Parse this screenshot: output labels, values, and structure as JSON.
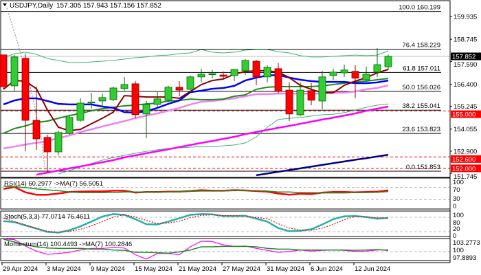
{
  "header": {
    "menu_icon": "triangle-down-icon",
    "symbol": "USDJPY,Daily",
    "ohlc": "157.305 157.943 157.156 157.852"
  },
  "colors": {
    "bull": "#32cd32",
    "bear": "#ff0000",
    "ma_fast": "#8b0000",
    "ma_blue": "#0000ff",
    "ma_green": "#228b22",
    "ma_violet": "#ee82ee",
    "ma_magenta": "#ff00ff",
    "ma_navy": "#000080",
    "band": "#3cb371",
    "support": "#ff0000",
    "fib": "#000000",
    "current": "#c0c0c0"
  },
  "price_axis": {
    "ticks": [
      "159.935",
      "158.745",
      "157.590",
      "156.400",
      "155.245",
      "154.055",
      "152.900",
      "151.745"
    ],
    "current_price": "157.852",
    "support_levels": [
      "155.000",
      "152.600",
      "152.000"
    ]
  },
  "fib_levels": [
    {
      "label": "100.0 160.199",
      "price": 160.199
    },
    {
      "label": "76.4 158.229",
      "price": 158.229
    },
    {
      "label": "61.8 157.011",
      "price": 157.011
    },
    {
      "label": "50.0 156.026",
      "price": 156.026
    },
    {
      "label": "38.2 155.041",
      "price": 155.041
    },
    {
      "label": "23.6 153.823",
      "price": 153.823
    },
    {
      "label": "0.0 151.853",
      "price": 151.853
    }
  ],
  "dates": [
    "29 Apr 2024",
    "3 May 2024",
    "9 May 2024",
    "15 May 2024",
    "21 May 2024",
    "27 May 2024",
    "31 May 2024",
    "6 Jun 2024",
    "12 Jun 2024"
  ],
  "chart_data": [
    {
      "type": "candlestick",
      "title": "USDJPY,Daily",
      "ylim": [
        151.745,
        160.199
      ],
      "ohlc": [
        [
          157.93,
          157.93,
          156.13,
          156.27
        ],
        [
          156.31,
          157.93,
          156.02,
          157.82
        ],
        [
          157.75,
          158.0,
          152.9,
          154.51
        ],
        [
          154.51,
          156.27,
          152.97,
          153.54
        ],
        [
          153.62,
          153.76,
          151.82,
          152.86
        ],
        [
          152.86,
          153.98,
          152.68,
          153.87
        ],
        [
          153.83,
          154.77,
          153.76,
          154.66
        ],
        [
          154.51,
          155.66,
          154.44,
          155.41
        ],
        [
          155.43,
          155.95,
          155.12,
          155.47
        ],
        [
          155.52,
          155.91,
          155.2,
          155.7
        ],
        [
          155.59,
          156.27,
          155.52,
          156.2
        ],
        [
          156.17,
          156.78,
          156.06,
          156.38
        ],
        [
          156.42,
          156.56,
          154.62,
          154.8
        ],
        [
          154.84,
          155.52,
          153.58,
          155.34
        ],
        [
          155.34,
          155.99,
          155.2,
          155.63
        ],
        [
          155.56,
          156.31,
          155.48,
          156.24
        ],
        [
          156.24,
          156.56,
          155.77,
          156.09
        ],
        [
          156.13,
          156.85,
          156.09,
          156.78
        ],
        [
          156.78,
          157.21,
          156.49,
          156.92
        ],
        [
          156.9,
          157.14,
          156.7,
          156.95
        ],
        [
          156.88,
          157.06,
          156.67,
          156.81
        ],
        [
          156.85,
          157.17,
          156.56,
          157.17
        ],
        [
          157.1,
          157.71,
          156.88,
          157.64
        ],
        [
          157.6,
          157.67,
          156.35,
          156.78
        ],
        [
          156.78,
          157.39,
          156.49,
          157.28
        ],
        [
          157.21,
          157.5,
          155.91,
          156.02
        ],
        [
          156.09,
          156.49,
          154.48,
          154.84
        ],
        [
          154.8,
          156.49,
          154.73,
          156.09
        ],
        [
          156.06,
          156.45,
          155.3,
          155.56
        ],
        [
          155.52,
          157.1,
          155.09,
          156.78
        ],
        [
          156.85,
          157.21,
          156.63,
          157.03
        ],
        [
          156.99,
          157.42,
          156.78,
          157.14
        ],
        [
          157.07,
          157.39,
          155.66,
          156.71
        ],
        [
          156.63,
          157.32,
          156.59,
          156.92
        ],
        [
          157.03,
          158.28,
          156.78,
          157.42
        ],
        [
          157.305,
          157.943,
          157.156,
          157.852
        ]
      ],
      "overlays": {
        "ma_fast": [
          156.13,
          156.59,
          156.56,
          156.16,
          155.05,
          154.15,
          153.97,
          154.04,
          154.33,
          154.62,
          154.94,
          155.8,
          155.77,
          155.73,
          155.73,
          155.73,
          155.66,
          156.02,
          156.38,
          156.59,
          156.67,
          156.92,
          157.06,
          157.1,
          157.1,
          157.03,
          156.74,
          156.34,
          156.13,
          155.95,
          155.95,
          156.34,
          156.56,
          156.74,
          156.99,
          157.17
        ],
        "ma_blue": [
          155.34,
          155.55,
          155.66,
          155.66,
          155.52,
          155.37,
          155.34,
          155.34,
          155.34,
          155.23,
          155.16,
          154.94,
          154.91,
          154.98,
          155.16,
          155.37,
          155.55,
          155.98,
          156.06,
          156.16,
          156.2,
          156.31,
          156.59,
          156.74,
          156.85,
          156.88,
          156.74,
          156.63,
          156.56,
          156.52,
          156.52,
          156.52,
          156.45,
          156.45,
          156.49,
          156.59
        ],
        "ma_green": [
          153.83,
          154.08,
          154.22,
          154.4,
          154.47,
          154.62,
          154.76,
          154.87,
          155.01,
          155.12,
          155.19,
          155.27,
          155.3,
          155.37,
          155.41,
          155.52,
          155.55,
          155.62,
          155.59,
          155.59,
          155.62,
          155.77,
          155.84,
          156.13,
          156.24,
          156.27,
          156.27,
          156.27,
          156.27,
          156.31,
          156.38,
          156.45,
          156.52,
          156.56,
          156.63,
          156.7
        ],
        "ma_violet": [
          153.04,
          153.14,
          153.25,
          153.33,
          153.43,
          153.58,
          153.72,
          153.9,
          154.04,
          154.19,
          154.33,
          154.47,
          154.62,
          154.76,
          154.87,
          155.01,
          155.16,
          155.34,
          155.48,
          155.52,
          155.59,
          155.66,
          155.77,
          155.88,
          155.88,
          155.91,
          155.91,
          155.91,
          155.91,
          155.91,
          155.95,
          155.95,
          156.02,
          156.13,
          156.2,
          156.34
        ],
        "ma_magenta": [
          null,
          null,
          null,
          151.67,
          151.78,
          151.89,
          152.0,
          152.1,
          152.21,
          152.32,
          152.43,
          152.57,
          152.68,
          152.79,
          152.89,
          153.0,
          153.11,
          153.22,
          153.33,
          153.43,
          153.54,
          153.65,
          153.79,
          153.9,
          154.01,
          154.12,
          154.22,
          154.33,
          154.44,
          154.55,
          154.65,
          154.76,
          154.87,
          155.01,
          155.12,
          155.23
        ],
        "ma_navy": [
          null,
          null,
          null,
          null,
          null,
          null,
          null,
          null,
          null,
          null,
          null,
          null,
          null,
          null,
          null,
          null,
          null,
          null,
          null,
          null,
          null,
          null,
          null,
          151.64,
          151.73,
          151.82,
          151.91,
          152.0,
          152.09,
          152.18,
          152.27,
          152.36,
          152.45,
          152.53,
          152.62,
          152.71
        ],
        "band_upper": [
          157.78,
          157.99,
          158.07,
          157.96,
          157.74,
          157.64,
          157.53,
          157.53,
          157.56,
          157.6,
          157.64,
          157.71,
          157.78,
          157.82,
          157.89,
          157.92,
          157.99,
          158.03,
          158.21,
          158.07,
          158.03,
          158.07,
          158.18,
          158.21,
          158.21,
          158.1,
          158.03,
          157.89,
          157.82,
          157.82,
          157.85,
          157.89,
          157.92,
          157.89,
          157.92,
          158.14
        ],
        "band_lower": [
          null,
          null,
          null,
          null,
          null,
          151.71,
          151.89,
          152.07,
          152.25,
          152.43,
          152.57,
          152.68,
          152.79,
          152.89,
          152.97,
          153.04,
          153.07,
          153.11,
          153.14,
          153.14,
          153.18,
          153.22,
          153.33,
          153.65,
          154.15,
          154.55,
          154.62,
          154.65,
          154.73,
          154.8,
          154.83,
          154.91,
          155.05,
          155.19,
          155.3,
          155.37
        ]
      }
    },
    {
      "type": "line",
      "title": "RSI(14) 60.2977  ->MA(7) 56.5051",
      "ylim": [
        0,
        100
      ],
      "ticks": [
        "100",
        "70",
        "30",
        "0"
      ],
      "levels": [
        70,
        30
      ],
      "series": [
        {
          "name": "RSI(14)",
          "values": [
            65,
            71,
            54,
            46,
            46,
            50,
            55,
            56,
            57,
            57,
            59,
            59,
            53,
            55,
            55,
            56,
            56,
            58,
            61,
            59,
            59,
            61,
            60,
            58,
            56,
            50,
            46,
            49,
            48,
            53,
            55,
            55,
            54,
            55,
            56,
            60.3
          ]
        },
        {
          "name": "MA(7)",
          "values": [
            74,
            72,
            69,
            65,
            62,
            59,
            55,
            53,
            53,
            53,
            53,
            55,
            55,
            55,
            55,
            55,
            56,
            57,
            58,
            58,
            59,
            59,
            60,
            59,
            58,
            55,
            55,
            53,
            53,
            52,
            52,
            52,
            53,
            53,
            54,
            56.5
          ]
        }
      ]
    },
    {
      "type": "line",
      "title": "Stoch(5,3,3) 77.0714 76.4611",
      "ylim": [
        0,
        100
      ],
      "ticks": [
        "100",
        "80",
        "20",
        "0"
      ],
      "levels": [
        80,
        20
      ],
      "series": [
        {
          "values": [
            64,
            60,
            46,
            33,
            19,
            16,
            26,
            42,
            62,
            83,
            93,
            90,
            72,
            51,
            50,
            62,
            76,
            90,
            93,
            92,
            85,
            85,
            86,
            74,
            62,
            35,
            22,
            24,
            30,
            50,
            72,
            84,
            85,
            81,
            74,
            77.1
          ]
        },
        {
          "values": [
            76,
            62,
            49,
            33,
            22,
            18,
            21,
            30,
            44,
            62,
            81,
            90,
            81,
            67,
            54,
            56,
            64,
            78,
            88,
            90,
            87,
            86,
            85,
            79,
            74,
            53,
            35,
            27,
            26,
            35,
            50,
            70,
            83,
            81,
            78,
            76.5
          ]
        }
      ]
    },
    {
      "type": "line",
      "title": "Momentum(14) 100.4493  ->MA(7) 100.2846",
      "ylim": [
        97.8893,
        103.2773
      ],
      "ticks": [
        "103.2773",
        "100",
        "97.8893"
      ],
      "levels": [
        100
      ],
      "series": [
        {
          "name": "Momentum(14)",
          "values": [
            103.2,
            103.0,
            101.4,
            100.1,
            99.3,
            99.5,
            99.8,
            100.4,
            100.8,
            100.8,
            101.0,
            100.9,
            99.2,
            98.1,
            99.5,
            99.5,
            99.2,
            101.2,
            102.6,
            102.5,
            101.7,
            101.3,
            101.4,
            100.8,
            100.3,
            99.8,
            100.0,
            100.4,
            100.1,
            100.3,
            100.4,
            100.3,
            100.0,
            100.1,
            100.4,
            100.45
          ]
        },
        {
          "name": "MA(7)",
          "values": [
            103.1,
            102.4,
            101.7,
            101.2,
            100.9,
            100.8,
            100.8,
            100.8,
            100.6,
            100.6,
            100.4,
            100.3,
            99.8,
            99.8,
            99.7,
            99.6,
            99.9,
            100.4,
            101.2,
            101.2,
            101.3,
            101.3,
            101.3,
            101.2,
            100.8,
            100.6,
            100.6,
            100.4,
            100.4,
            100.4,
            100.4,
            100.4,
            100.3,
            100.4,
            100.5,
            100.28
          ]
        }
      ]
    }
  ]
}
